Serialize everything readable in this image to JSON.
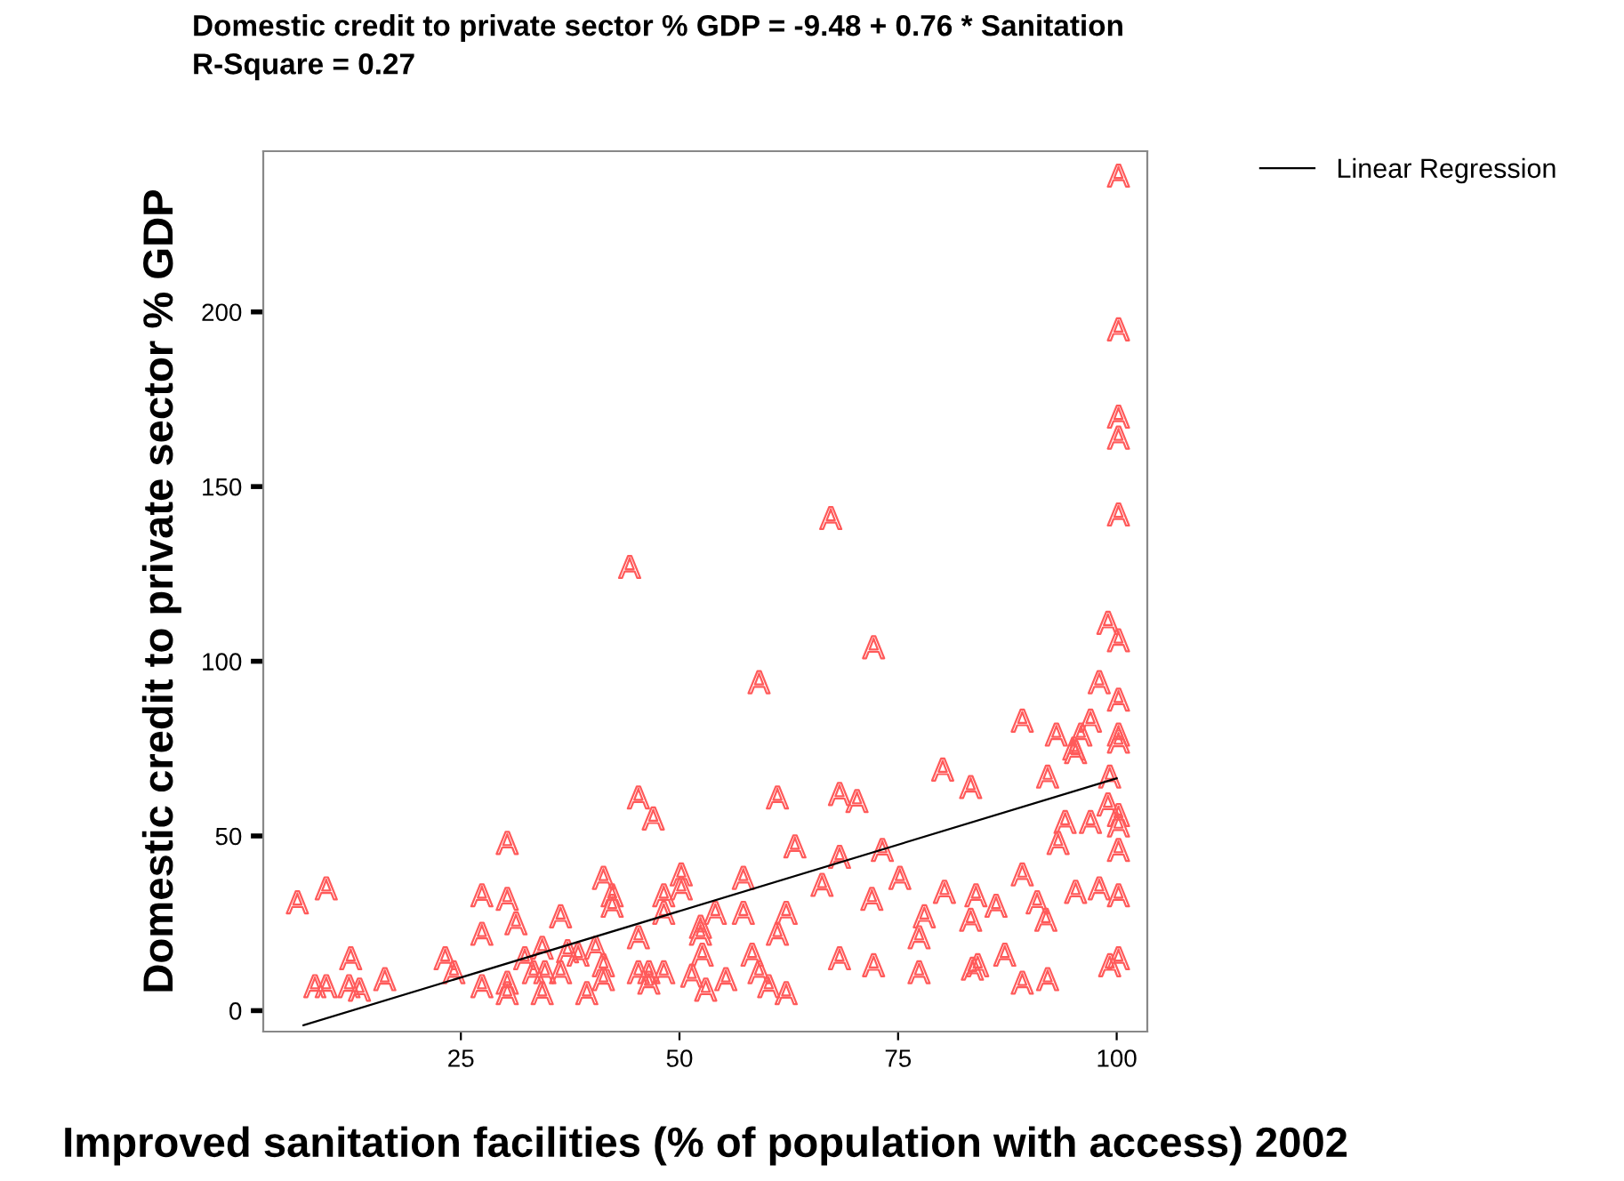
{
  "chart_data": {
    "type": "scatter",
    "title": "Domestic credit to private sector % GDP = -9.48 + 0.76 * Sanitation\nR-Square = 0.27",
    "xlabel": "Improved sanitation facilities (% of population with access) 2002",
    "ylabel": "Domestic credit to private sector % GDP",
    "xlim": [
      2.4,
      103.5
    ],
    "ylim": [
      -6,
      246
    ],
    "xticks": [
      25,
      50,
      75,
      100
    ],
    "yticks": [
      0,
      50,
      100,
      150,
      200
    ],
    "grid": false,
    "legend": "top right",
    "series": [
      {
        "color": "#ff5a5a",
        "x": [
          6.3,
          9.6,
          12.4,
          8.3,
          9.6,
          12.2,
          13.4,
          16.3,
          23.2,
          24.2,
          27.4,
          27.4,
          27.4,
          30.3,
          30.3,
          31.3,
          30.3,
          30.3,
          32.3,
          33.3,
          34.3,
          34.6,
          34.3,
          36.4,
          36.4,
          37.2,
          38.4,
          39.4,
          40.4,
          41.3,
          42.3,
          42.3,
          41.3,
          41.3,
          45.3,
          47.0,
          45.3,
          45.3,
          46.5,
          46.5,
          48.2,
          48.2,
          48.2,
          50.2,
          50.2,
          51.4,
          52.4,
          52.4,
          52.6,
          53.0,
          54.1,
          61.2,
          68.3,
          70.3,
          80.1,
          83.3,
          92.1,
          95.3,
          99.2,
          99.0,
          100.2,
          94.1,
          97.0,
          100.2,
          100.2,
          93.3,
          63.2,
          68.3,
          73.2,
          89.2,
          57.3,
          66.3,
          75.2,
          80.3,
          83.9,
          86.2,
          90.9,
          91.9,
          95.3,
          98.0,
          100.2,
          72.0,
          78.0,
          83.3,
          57.3,
          62.2,
          61.2,
          77.4,
          58.3,
          59.1,
          68.3,
          72.2,
          77.4,
          83.5,
          84.1,
          87.2,
          89.2,
          92.1,
          99.2,
          100.2,
          55.3,
          60.2,
          62.2,
          44.3,
          67.3,
          59.1,
          72.2,
          100.2,
          99.0,
          100.2,
          98.0,
          100.2,
          89.2,
          93.1,
          97.0,
          95.9,
          95.1,
          100.2,
          100.2,
          100.2,
          100.2,
          100.2,
          100.2
        ],
        "values": [
          31,
          35,
          15,
          7,
          7,
          7,
          6,
          9,
          15,
          11,
          33,
          22,
          7,
          48,
          32,
          25,
          8,
          5,
          15,
          11,
          18,
          11,
          5,
          27,
          11,
          17,
          16,
          5,
          18,
          38,
          33,
          30,
          13,
          9,
          61,
          55,
          21,
          11,
          11,
          8,
          33,
          28,
          11,
          39,
          35,
          10,
          24,
          22,
          16,
          6,
          28,
          61,
          62,
          60,
          69,
          64,
          67,
          74,
          67,
          59,
          56,
          54,
          54,
          53,
          46,
          48,
          47,
          44,
          46,
          39,
          38,
          36,
          38,
          34,
          33,
          30,
          31,
          26,
          34,
          35,
          33,
          32,
          27,
          26,
          28,
          28,
          22,
          21,
          16,
          11,
          15,
          13,
          11,
          12,
          13,
          16,
          8,
          9,
          13,
          15,
          9,
          7,
          5,
          127,
          141,
          94,
          104,
          142,
          111,
          106,
          94,
          89,
          83,
          79,
          83,
          79,
          75,
          79,
          77,
          239,
          195,
          170,
          164
        ]
      },
      {
        "type": "line",
        "name": "Linear Regression",
        "color": "#000000",
        "x": [
          7,
          100
        ],
        "values": [
          -4.2,
          66.5
        ]
      }
    ]
  }
}
